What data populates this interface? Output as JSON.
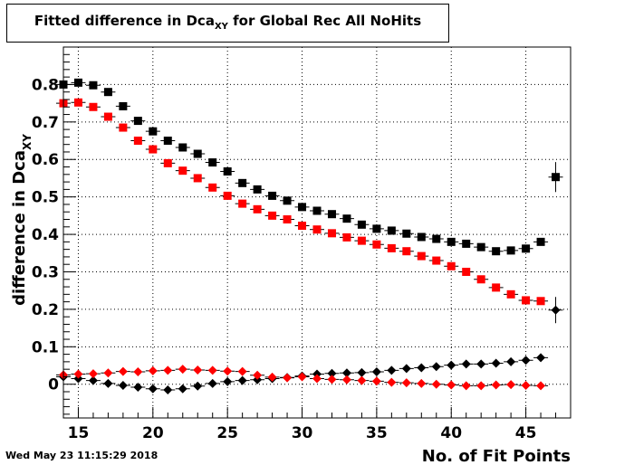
{
  "title": {
    "prefix": "Fitted difference in Dca",
    "subscript": "XY",
    "suffix": " for Global Rec All NoHits"
  },
  "timestamp": "Wed May 23 11:15:29 2018",
  "chart_data": {
    "type": "scatter",
    "title": "Fitted difference in DcaXY for Global Rec All NoHits",
    "xlabel": "No. of Fit Points",
    "ylabel_main": "difference in Dca",
    "ylabel_sub": "XY",
    "xlim": [
      14,
      48
    ],
    "ylim": [
      -0.09,
      0.9
    ],
    "grid": true,
    "x_ticks": [
      15,
      20,
      25,
      30,
      35,
      40,
      45
    ],
    "y_ticks": [
      0,
      0.1,
      0.2,
      0.3,
      0.4,
      0.5,
      0.6,
      0.7,
      0.8
    ],
    "x_tick_labels": [
      "15",
      "20",
      "25",
      "30",
      "35",
      "40",
      "45"
    ],
    "y_tick_labels": [
      "0",
      "0.1",
      "0.2",
      "0.3",
      "0.4",
      "0.5",
      "0.6",
      "0.7",
      "0.8"
    ],
    "series": [
      {
        "marker": "square",
        "color": "#000000",
        "x": [
          14,
          15,
          16,
          17,
          18,
          19,
          20,
          21,
          22,
          23,
          24,
          25,
          26,
          27,
          28,
          29,
          30,
          31,
          32,
          33,
          34,
          35,
          36,
          37,
          38,
          39,
          40,
          41,
          42,
          43,
          44,
          45,
          46,
          47
        ],
        "y": [
          0.8,
          0.805,
          0.798,
          0.78,
          0.742,
          0.703,
          0.675,
          0.65,
          0.632,
          0.615,
          0.592,
          0.568,
          0.537,
          0.52,
          0.503,
          0.49,
          0.473,
          0.463,
          0.454,
          0.442,
          0.426,
          0.415,
          0.41,
          0.402,
          0.393,
          0.388,
          0.38,
          0.375,
          0.366,
          0.355,
          0.357,
          0.362,
          0.38,
          0.553
        ],
        "yerr": [
          0,
          0,
          0,
          0,
          0,
          0,
          0,
          0,
          0,
          0,
          0,
          0,
          0,
          0,
          0,
          0,
          0,
          0,
          0,
          0,
          0,
          0,
          0,
          0,
          0,
          0,
          0,
          0,
          0,
          0,
          0,
          0,
          0,
          0.04
        ]
      },
      {
        "marker": "square",
        "color": "#ff0000",
        "x": [
          14,
          15,
          16,
          17,
          18,
          19,
          20,
          21,
          22,
          23,
          24,
          25,
          26,
          27,
          28,
          29,
          30,
          31,
          32,
          33,
          34,
          35,
          36,
          37,
          38,
          39,
          40,
          41,
          42,
          43,
          44,
          45,
          46
        ],
        "y": [
          0.75,
          0.752,
          0.74,
          0.714,
          0.685,
          0.65,
          0.627,
          0.59,
          0.57,
          0.55,
          0.525,
          0.503,
          0.482,
          0.467,
          0.45,
          0.44,
          0.423,
          0.413,
          0.403,
          0.392,
          0.383,
          0.373,
          0.363,
          0.355,
          0.342,
          0.33,
          0.315,
          0.3,
          0.28,
          0.258,
          0.24,
          0.224,
          0.222
        ],
        "yerr": [
          0,
          0,
          0,
          0,
          0,
          0,
          0,
          0,
          0,
          0,
          0,
          0,
          0,
          0,
          0,
          0,
          0,
          0,
          0,
          0,
          0,
          0,
          0,
          0,
          0,
          0,
          0,
          0,
          0,
          0,
          0,
          0,
          0
        ]
      },
      {
        "marker": "diamond",
        "color": "#000000",
        "x": [
          14,
          15,
          16,
          17,
          18,
          19,
          20,
          21,
          22,
          23,
          24,
          25,
          26,
          27,
          28,
          29,
          30,
          31,
          32,
          33,
          34,
          35,
          36,
          37,
          38,
          39,
          40,
          41,
          42,
          43,
          44,
          45,
          46,
          47
        ],
        "y": [
          0.02,
          0.015,
          0.01,
          0.002,
          -0.003,
          -0.008,
          -0.012,
          -0.015,
          -0.012,
          -0.005,
          0.002,
          0.007,
          0.01,
          0.012,
          0.015,
          0.018,
          0.022,
          0.027,
          0.029,
          0.03,
          0.031,
          0.033,
          0.037,
          0.042,
          0.044,
          0.047,
          0.051,
          0.054,
          0.054,
          0.056,
          0.06,
          0.064,
          0.071,
          0.198
        ],
        "yerr": [
          0,
          0,
          0,
          0,
          0,
          0,
          0,
          0,
          0,
          0,
          0,
          0,
          0,
          0,
          0,
          0,
          0,
          0,
          0,
          0,
          0,
          0,
          0,
          0,
          0,
          0,
          0,
          0,
          0,
          0,
          0,
          0,
          0,
          0.035
        ]
      },
      {
        "marker": "diamond",
        "color": "#ff0000",
        "x": [
          14,
          15,
          16,
          17,
          18,
          19,
          20,
          21,
          22,
          23,
          24,
          25,
          26,
          27,
          28,
          29,
          30,
          31,
          32,
          33,
          34,
          35,
          36,
          37,
          38,
          39,
          40,
          41,
          42,
          43,
          44,
          45,
          46
        ],
        "y": [
          0.025,
          0.027,
          0.028,
          0.03,
          0.034,
          0.033,
          0.036,
          0.037,
          0.04,
          0.038,
          0.037,
          0.035,
          0.034,
          0.024,
          0.019,
          0.017,
          0.02,
          0.015,
          0.013,
          0.012,
          0.01,
          0.008,
          0.005,
          0.004,
          0.002,
          0.0,
          -0.002,
          -0.004,
          -0.004,
          -0.002,
          -0.001,
          -0.003,
          -0.004
        ],
        "yerr": [
          0,
          0,
          0,
          0,
          0,
          0,
          0,
          0,
          0,
          0,
          0,
          0,
          0,
          0,
          0,
          0,
          0,
          0,
          0,
          0,
          0,
          0,
          0,
          0,
          0,
          0,
          0,
          0,
          0,
          0,
          0,
          0,
          0
        ]
      }
    ]
  }
}
